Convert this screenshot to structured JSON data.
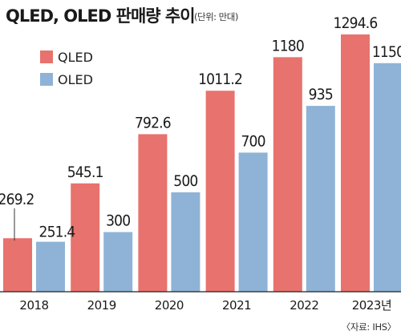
{
  "header": {
    "title": "QLED, OLED 판매량 추이",
    "unit": "(단위: 만대)"
  },
  "source": "〈자료: IHS〉",
  "colors": {
    "qled": "#e8726d",
    "oled": "#8fb3d6",
    "axis": "#222222",
    "leader": "#333333"
  },
  "chart_data": {
    "type": "bar",
    "categories": [
      "2018",
      "2019",
      "2020",
      "2021",
      "2022",
      "2023년"
    ],
    "series": [
      {
        "name": "QLED",
        "values": [
          269.2,
          545.1,
          792.6,
          1011.2,
          1180,
          1294.6
        ],
        "labels": [
          "269.2",
          "545.1",
          "792.6",
          "1011.2",
          "1180",
          "1294.6"
        ]
      },
      {
        "name": "OLED",
        "values": [
          251.4,
          300,
          500,
          700,
          935,
          1150
        ],
        "labels": [
          "251.4",
          "300",
          "500",
          "700",
          "935",
          "1150"
        ]
      }
    ],
    "ylim": [
      0,
      1300
    ],
    "grid": false,
    "legend": "top-left"
  }
}
